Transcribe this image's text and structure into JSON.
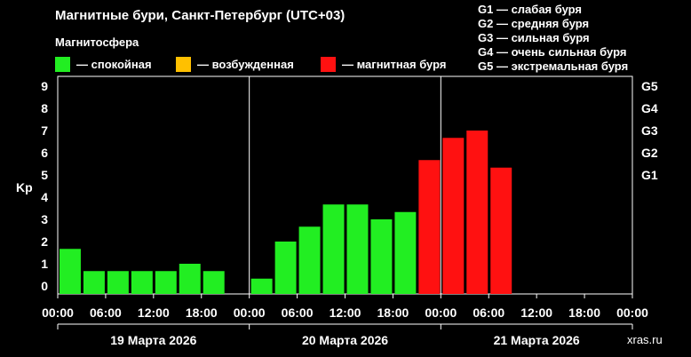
{
  "chart_data": {
    "type": "bar",
    "title": "Магнитные бури, Санкт-Петербург (UTC+03)",
    "legend_title": "Магнитосфера",
    "legend": [
      {
        "label": "— спокойная",
        "color": "#22ee22"
      },
      {
        "label": "— возбужденная",
        "color": "#ffc000"
      },
      {
        "label": "— магнитная буря",
        "color": "#ff1111"
      }
    ],
    "g_scale": [
      "G1 — слабая буря",
      "G2 — средняя буря",
      "G3 — сильная буря",
      "G4 — очень сильная буря",
      "G5 — экстремальная буря"
    ],
    "ylabel": "Kp",
    "ylim": [
      0,
      9
    ],
    "yticks": [
      "0",
      "1",
      "2",
      "3",
      "4",
      "5",
      "6",
      "7",
      "8",
      "9"
    ],
    "g_ticks": [
      {
        "label": "G1",
        "kp": 5
      },
      {
        "label": "G2",
        "kp": 6
      },
      {
        "label": "G3",
        "kp": 7
      },
      {
        "label": "G4",
        "kp": 8
      },
      {
        "label": "G5",
        "kp": 9
      }
    ],
    "xtick_labels": [
      "00:00",
      "06:00",
      "12:00",
      "18:00",
      "00:00",
      "06:00",
      "12:00",
      "18:00",
      "00:00",
      "06:00",
      "12:00",
      "18:00",
      "00:00"
    ],
    "days": [
      "19 Марта 2026",
      "20 Марта 2026",
      "21 Марта 2026"
    ],
    "kp_values": [
      1.67,
      0.67,
      0.67,
      0.67,
      0.67,
      1.0,
      0.67,
      null,
      0.33,
      2.0,
      2.67,
      3.67,
      3.67,
      3.0,
      3.33,
      5.67,
      6.67,
      7.0,
      5.33,
      null,
      null,
      null,
      null,
      null
    ],
    "status_colors": {
      "calm": "#22ee22",
      "excited": "#ffc000",
      "storm": "#ff1111"
    },
    "background": "#000000",
    "grid": false
  },
  "watermark": "xras.ru"
}
